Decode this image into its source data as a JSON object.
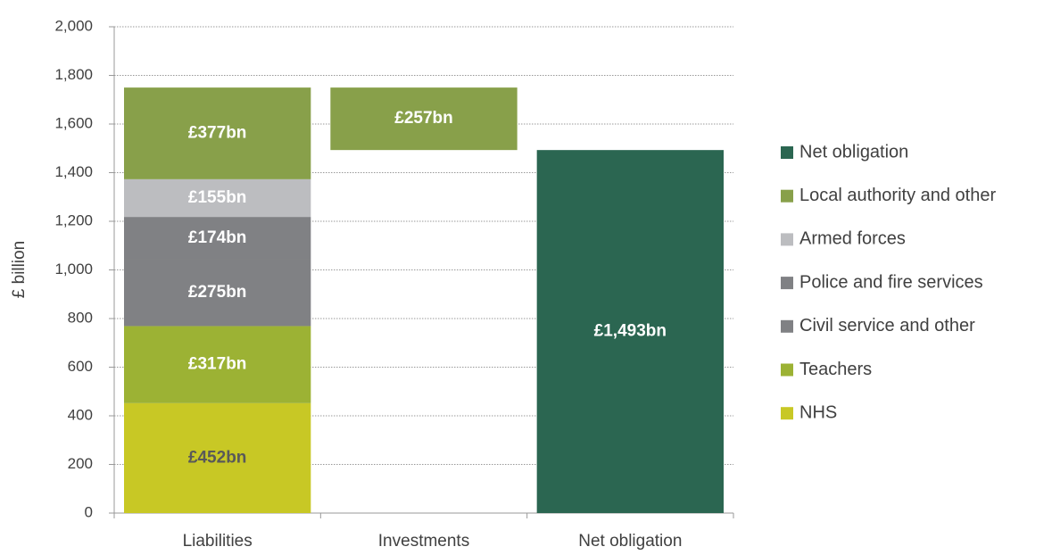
{
  "chart_data": {
    "type": "waterfall",
    "y_label": "£ billion",
    "categories": [
      "Liabilities",
      "Investments",
      "Net obligation"
    ],
    "measure": [
      "increase",
      "decrease",
      "total"
    ],
    "ylim": [
      0,
      2000
    ],
    "yticks": [
      0,
      200,
      400,
      600,
      800,
      {
        "value": 1000,
        "label": "1,000"
      },
      {
        "value": 1200,
        "label": "1,200"
      },
      {
        "value": 1400,
        "label": "1,400"
      },
      {
        "value": 1600,
        "label": "1,600"
      },
      {
        "value": 1800,
        "label": "1,800"
      },
      {
        "value": 2000,
        "label": "2,000"
      }
    ],
    "grid": true,
    "legend": "right",
    "series": [
      {
        "name": "NHS",
        "color": "#c8c825",
        "label_color": "#595959",
        "values": [
          452,
          null,
          null
        ],
        "value_labels": [
          "£452bn",
          null,
          null
        ]
      },
      {
        "name": "Teachers",
        "color": "#9cb234",
        "label_color": "#ffffff",
        "values": [
          317,
          null,
          null
        ],
        "value_labels": [
          "£317bn",
          null,
          null
        ]
      },
      {
        "name": "Civil service and other",
        "color": "#808184",
        "label_color": "#ffffff",
        "values": [
          275,
          null,
          null
        ],
        "value_labels": [
          "£275bn",
          null,
          null
        ]
      },
      {
        "name": "Police and fire services",
        "color": "#808184",
        "label_color": "#ffffff",
        "values": [
          174,
          null,
          null
        ],
        "value_labels": [
          "£174bn",
          null,
          null
        ]
      },
      {
        "name": "Armed forces",
        "color": "#bcbdc0",
        "label_color": "#ffffff",
        "values": [
          155,
          null,
          null
        ],
        "value_labels": [
          "£155bn",
          null,
          null
        ]
      },
      {
        "name": "Local authority and other",
        "color": "#88a04a",
        "label_color": "#ffffff",
        "values": [
          377,
          null,
          null
        ],
        "value_labels": [
          "£377bn",
          null,
          null
        ]
      },
      {
        "color": "#88a04a",
        "label_color": "#ffffff",
        "values": [
          null,
          257,
          null
        ],
        "value_labels": [
          null,
          "£257bn",
          null
        ]
      },
      {
        "name": "Net obligation",
        "color": "#2b6651",
        "label_color": "#ffffff",
        "values": [
          null,
          null,
          1493
        ],
        "value_labels": [
          null,
          null,
          "£1,493bn"
        ]
      }
    ]
  }
}
